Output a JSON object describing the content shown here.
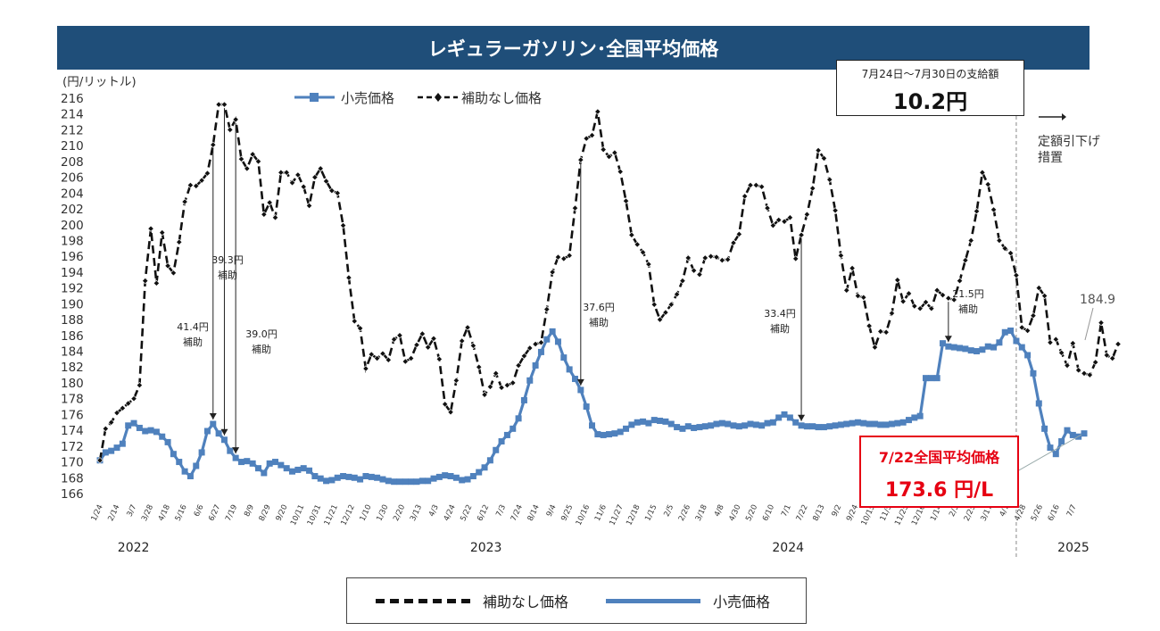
{
  "title": "レギュラーガソリン･全国平均価格",
  "subsidy_box": {
    "label": "7月24日〜7月30日の支給額",
    "value": "10.2円"
  },
  "price_box": {
    "label": "7/22全国平均価格",
    "value": "173.6 円/L"
  },
  "measure_label_1": "定額引下げ",
  "measure_label_2": "措置",
  "bottom_legend": {
    "no_subsidy": "補助なし価格",
    "retail": "小売価格"
  },
  "colors": {
    "title_bg": "#1f4e79",
    "retail": "#4f81bd",
    "no_subsidy": "#111111",
    "highlight": "#e60012"
  },
  "chart_data": {
    "type": "line",
    "ylabel": "(円/リットル)",
    "ylim": [
      166,
      216
    ],
    "yticks": [
      166,
      168,
      170,
      172,
      174,
      176,
      178,
      180,
      182,
      184,
      186,
      188,
      190,
      192,
      194,
      196,
      198,
      200,
      202,
      204,
      206,
      208,
      210,
      212,
      214,
      216
    ],
    "xticks": [
      "1/24",
      "2/14",
      "3/7",
      "3/28",
      "4/18",
      "5/16",
      "6/6",
      "6/27",
      "7/19",
      "8/9",
      "8/29",
      "9/20",
      "10/11",
      "10/31",
      "11/21",
      "12/12",
      "1/10",
      "1/30",
      "2/20",
      "3/13",
      "4/3",
      "4/24",
      "5/22",
      "6/12",
      "7/3",
      "7/24",
      "8/14",
      "9/4",
      "9/25",
      "10/16",
      "11/6",
      "11/27",
      "12/18",
      "1/15",
      "2/5",
      "2/26",
      "3/18",
      "4/8",
      "4/30",
      "5/20",
      "6/10",
      "7/1",
      "7/22",
      "8/13",
      "9/2",
      "9/24",
      "10/15",
      "11/5",
      "11/25",
      "12/16",
      "1/14",
      "2/3",
      "2/25",
      "3/17",
      "4/7",
      "4/28",
      "5/26",
      "6/16",
      "7/7"
    ],
    "years": [
      "2022",
      "2023",
      "2024",
      "2025"
    ],
    "legend": [
      "小売価格",
      "補助なし価格"
    ],
    "series": [
      {
        "name": "小売価格",
        "style": "solid-square",
        "values": [
          170.2,
          171.2,
          171.4,
          171.8,
          172.3,
          174.6,
          174.9,
          174.3,
          173.9,
          174.0,
          173.8,
          173.2,
          172.5,
          171.0,
          170.0,
          168.8,
          168.2,
          169.5,
          171.2,
          173.9,
          174.8,
          173.6,
          172.8,
          171.4,
          170.5,
          170.0,
          170.1,
          169.8,
          169.2,
          168.6,
          169.8,
          170.0,
          169.6,
          169.2,
          168.8,
          169.0,
          169.2,
          168.9,
          168.2,
          167.9,
          167.6,
          167.7,
          168.0,
          168.2,
          168.1,
          168.0,
          167.8,
          168.2,
          168.1,
          168.0,
          167.8,
          167.6,
          167.5,
          167.5,
          167.5,
          167.5,
          167.5,
          167.6,
          167.6,
          167.9,
          168.1,
          168.3,
          168.2,
          168.0,
          167.7,
          167.8,
          168.2,
          168.7,
          169.3,
          170.2,
          171.5,
          172.6,
          173.4,
          174.2,
          175.5,
          177.8,
          180.3,
          182.2,
          183.9,
          185.5,
          186.5,
          185.2,
          183.2,
          181.7,
          180.5,
          179.1,
          177.0,
          174.6,
          173.5,
          173.4,
          173.5,
          173.6,
          173.8,
          174.2,
          174.7,
          175.0,
          175.1,
          174.9,
          175.3,
          175.2,
          175.1,
          174.8,
          174.4,
          174.2,
          174.5,
          174.3,
          174.4,
          174.5,
          174.6,
          174.8,
          174.9,
          174.8,
          174.6,
          174.5,
          174.6,
          174.8,
          174.7,
          174.6,
          174.9,
          175.0,
          175.6,
          176.0,
          175.6,
          175.0,
          174.6,
          174.5,
          174.5,
          174.4,
          174.4,
          174.5,
          174.6,
          174.7,
          174.8,
          174.9,
          175.0,
          174.9,
          174.8,
          174.8,
          174.7,
          174.7,
          174.8,
          174.9,
          175.0,
          175.3,
          175.6,
          175.8,
          180.6,
          180.6,
          180.6,
          185.0,
          184.6,
          184.5,
          184.4,
          184.3,
          184.1,
          184.0,
          184.2,
          184.6,
          184.5,
          185.1,
          186.4,
          186.6,
          185.3,
          184.5,
          183.5,
          181.2,
          177.4,
          174.2,
          171.8,
          171.0,
          172.6,
          174.0,
          173.4,
          173.2,
          173.6
        ]
      },
      {
        "name": "補助なし価格",
        "style": "dashed-diamond",
        "values": [
          170.2,
          174.2,
          175.0,
          176.2,
          176.8,
          177.4,
          178.0,
          179.7,
          192.9,
          199.5,
          192.6,
          199.0,
          194.8,
          193.9,
          197.8,
          202.9,
          205.0,
          204.9,
          205.6,
          206.5,
          210.1,
          215.2,
          215.2,
          212.0,
          213.3,
          208.3,
          207.1,
          208.9,
          208.0,
          201.3,
          202.8,
          200.9,
          206.6,
          206.6,
          205.3,
          206.3,
          204.8,
          202.4,
          206.0,
          207.1,
          205.5,
          204.3,
          204.0,
          199.9,
          193.3,
          187.8,
          186.9,
          181.8,
          183.6,
          183.1,
          183.7,
          182.9,
          185.5,
          186.0,
          182.7,
          183.1,
          184.8,
          186.2,
          184.5,
          185.6,
          183.0,
          177.3,
          176.3,
          180.3,
          185.3,
          187.0,
          184.7,
          182.0,
          178.5,
          179.5,
          181.2,
          179.4,
          179.7,
          180.0,
          182.2,
          183.4,
          184.4,
          184.9,
          185.1,
          189.3,
          194.0,
          195.9,
          195.7,
          196.1,
          202.1,
          208.2,
          210.9,
          211.3,
          214.3,
          209.5,
          208.6,
          209.1,
          206.7,
          203.0,
          198.7,
          197.5,
          196.5,
          195.0,
          189.9,
          188.0,
          188.9,
          189.9,
          191.2,
          192.9,
          195.8,
          194.2,
          193.7,
          195.8,
          196.0,
          195.9,
          195.5,
          195.6,
          197.7,
          198.8,
          203.6,
          205.0,
          205.0,
          204.8,
          202.1,
          199.9,
          200.6,
          200.4,
          200.9,
          195.7,
          198.7,
          201.3,
          204.6,
          209.4,
          208.4,
          205.7,
          201.8,
          196.1,
          191.7,
          194.5,
          191.0,
          190.8,
          187.2,
          184.5,
          186.5,
          186.4,
          188.8,
          193.0,
          190.3,
          191.3,
          189.7,
          189.4,
          190.2,
          189.4,
          191.7,
          191.1,
          190.7,
          190.5,
          192.9,
          195.5,
          198.0,
          201.7,
          206.6,
          205.1,
          201.9,
          198.0,
          197.0,
          196.4,
          193.6,
          187.0,
          186.6,
          188.5,
          192.0,
          191.0,
          185.1,
          185.5,
          183.8,
          182.2,
          185.0,
          181.6,
          181.2,
          181.0,
          182.6,
          187.6,
          183.5,
          183.1,
          184.9
        ]
      }
    ],
    "annotations": [
      {
        "text_1": "41.4円",
        "text_2": "補助"
      },
      {
        "text_1": "39.3円",
        "text_2": "補助"
      },
      {
        "text_1": "39.0円",
        "text_2": "補助"
      },
      {
        "text_1": "37.6円",
        "text_2": "補助"
      },
      {
        "text_1": "33.4円",
        "text_2": "補助"
      },
      {
        "text_1": "21.5円",
        "text_2": "補助"
      }
    ],
    "end_label": "184.9"
  }
}
